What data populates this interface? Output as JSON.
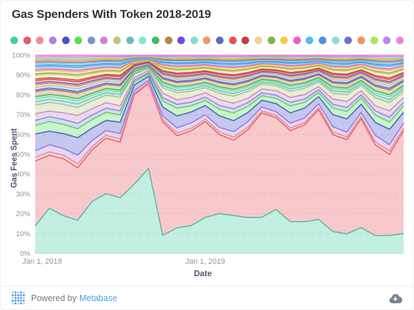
{
  "card": {
    "title": "Gas Spenders With Token 2018-2019"
  },
  "footer": {
    "powered_by": "Powered by",
    "brand": "Metabase",
    "logo_icon": "metabase-dot-grid-logo",
    "download_icon": "cloud-download-icon"
  },
  "colors": {
    "accent_blue": "#509EE3",
    "title_text": "#2d3439",
    "tick_text": "#8f95a3",
    "axis_label_text": "#4c5773",
    "gridline": "#e2e4e8",
    "axis_line": "#d7dadd"
  },
  "chart_data": {
    "type": "area",
    "stacking": "normalized-100",
    "title": "Gas Spenders With Token 2018-2019",
    "xlabel": "Date",
    "ylabel": "Gas Fees Spent",
    "ylim": [
      0,
      100
    ],
    "yticks": [
      "0%",
      "10%",
      "20%",
      "30%",
      "40%",
      "50%",
      "60%",
      "70%",
      "80%",
      "90%",
      "100%"
    ],
    "grid": "dashed-horizontal",
    "legend": {
      "position": "top",
      "labels_visible": false
    },
    "n_points": 27,
    "x_tick_labels": [
      {
        "index": 0,
        "label": "Jan 1, 2018"
      },
      {
        "index": 12,
        "label": "Jan 1, 2019"
      }
    ],
    "series": [
      {
        "color": "#41CEA2",
        "values": [
          16.2,
          28.3,
          22.5,
          18.7,
          33.3,
          43.9,
          39.1,
          107.6,
          188.9,
          16.3,
          20,
          22.7,
          32.6,
          30.8,
          27.2,
          29.1,
          36.9,
          42.3,
          25.9,
          28.1,
          37.3,
          16.9,
          14.6,
          25,
          12.3,
          11.1,
          16.2
        ]
      },
      {
        "color": "#E85861",
        "values": [
          38.3,
          33.2,
          34.3,
          29.7,
          33.3,
          41,
          39.1,
          138.4,
          188.9,
          103.1,
          72.3,
          77.7,
          86.8,
          61.5,
          54.3,
          71.2,
          106.6,
          88.4,
          74.4,
          86.1,
          120.8,
          75.3,
          70.3,
          105.7,
          62.9,
          50.4,
          84.2
        ]
      },
      {
        "color": "#EE8C8C",
        "values": 2
      },
      {
        "color": "#AB84D9",
        "values": [
          4,
          4.5,
          4,
          5,
          4,
          3.5,
          4,
          4,
          4.5,
          3.5,
          4,
          4.5,
          4,
          3.5,
          4,
          4.5,
          4,
          3.5,
          4,
          4,
          4.5,
          4,
          3.5,
          4,
          4.5,
          4,
          4
        ]
      },
      {
        "color": "#4B50C9",
        "values": [
          10,
          8.5,
          9,
          10,
          8,
          7.5,
          8,
          9,
          10,
          8,
          9.5,
          9,
          8.5,
          9,
          8,
          7.5,
          7,
          8,
          8.5,
          9,
          8,
          9.5,
          10,
          8,
          9,
          9.5,
          9
        ]
      },
      {
        "color": "#5BDC5B",
        "values": [
          5,
          6,
          5.5,
          5,
          5.5,
          6,
          5,
          4.5,
          5,
          5.5,
          6,
          5,
          4.5,
          5,
          5.5,
          5,
          4.5,
          5,
          5.5,
          5,
          4.5,
          5,
          5.5,
          6,
          5,
          4.5,
          5
        ]
      },
      {
        "color": "#7C90D4",
        "values": 3
      },
      {
        "color": "#CC85CE",
        "values": [
          4,
          3.5,
          4,
          4.5,
          4,
          4,
          3.5,
          4,
          4.5,
          4,
          3.5,
          4,
          4,
          4.5,
          4,
          3.5,
          4,
          4.5,
          4,
          4,
          3.5,
          4,
          4.5,
          4,
          3.5,
          4,
          4
        ]
      },
      {
        "color": "#BAC77E",
        "values": [
          5,
          5.5,
          5,
          4.5,
          5,
          5.5,
          6,
          5,
          4.5,
          5,
          5.5,
          5,
          4.5,
          5,
          5,
          5.5,
          5,
          4.5,
          5,
          5.5,
          5,
          4.5,
          5,
          5,
          5.5,
          5,
          5
        ]
      },
      {
        "color": "#6FB9BE",
        "values": 2
      },
      {
        "color": "#7FEBC1",
        "values": 1.5
      },
      {
        "color": "#3FBE5D",
        "values": 1.5
      },
      {
        "color": "#B2893D",
        "values": 3
      },
      {
        "color": "#6A4BE3",
        "values": 1
      },
      {
        "color": "#8FD8CE",
        "values": 1.5
      },
      {
        "color": "#F0985F",
        "values": 1.5
      },
      {
        "color": "#6667C2",
        "values": 1
      },
      {
        "color": "#DF5252",
        "values": 1.5
      },
      {
        "color": "#BE4040",
        "values": 1
      },
      {
        "color": "#F2D493",
        "values": 2
      },
      {
        "color": "#7EB342",
        "values": 1
      },
      {
        "color": "#F5C94F",
        "values": 1.5
      },
      {
        "color": "#F35BC6",
        "values": 1
      },
      {
        "color": "#54BAF2",
        "values": 1.5
      },
      {
        "color": "#4A8FE0",
        "values": 1
      },
      {
        "color": "#8FD9D9",
        "values": 1
      },
      {
        "color": "#6B74C4",
        "values": 1
      },
      {
        "color": "#F0915C",
        "values": 1
      },
      {
        "color": "#A2E85E",
        "values": 0.8
      },
      {
        "color": "#B28BE8",
        "values": 1.2
      },
      {
        "color": "#EF82DE",
        "values": 1
      }
    ]
  }
}
